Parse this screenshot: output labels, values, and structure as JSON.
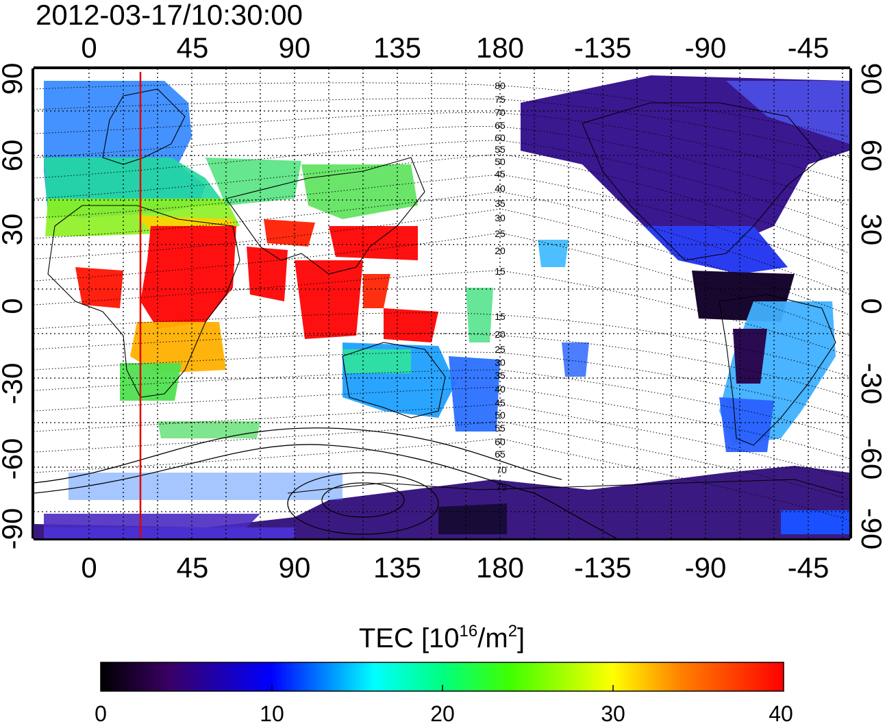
{
  "timestamp": "2012-03-17/10:30:00",
  "map": {
    "top_axis_labels": [
      "0",
      "45",
      "90",
      "135",
      "180",
      "-135",
      "-90",
      "-45"
    ],
    "bottom_axis_labels": [
      "0",
      "45",
      "90",
      "135",
      "180",
      "-135",
      "-90",
      "-45"
    ],
    "left_axis_labels": [
      "90",
      "60",
      "30",
      "0",
      "-30",
      "-60",
      "-90"
    ],
    "right_axis_labels": [
      "90",
      "60",
      "30",
      "0",
      "-30",
      "-60",
      "-90"
    ],
    "magnetic_latitude_labels": [
      "80",
      "75",
      "70",
      "65",
      "60",
      "55",
      "50",
      "45",
      "40",
      "35",
      "30",
      "25",
      "20",
      "15",
      "15",
      "20",
      "25",
      "30",
      "35",
      "40",
      "45",
      "50",
      "55",
      "60",
      "65",
      "70",
      "75"
    ],
    "marker_line_longitude": 22,
    "marker_line_color": "#e00000"
  },
  "colorbar": {
    "title_prefix": "TEC  [10",
    "title_exp": "16",
    "title_mid": "/m",
    "title_exp2": "2",
    "title_suffix": "]",
    "tick_labels": [
      "0",
      "10",
      "20",
      "30",
      "40"
    ],
    "min": 0,
    "max": 40
  }
}
